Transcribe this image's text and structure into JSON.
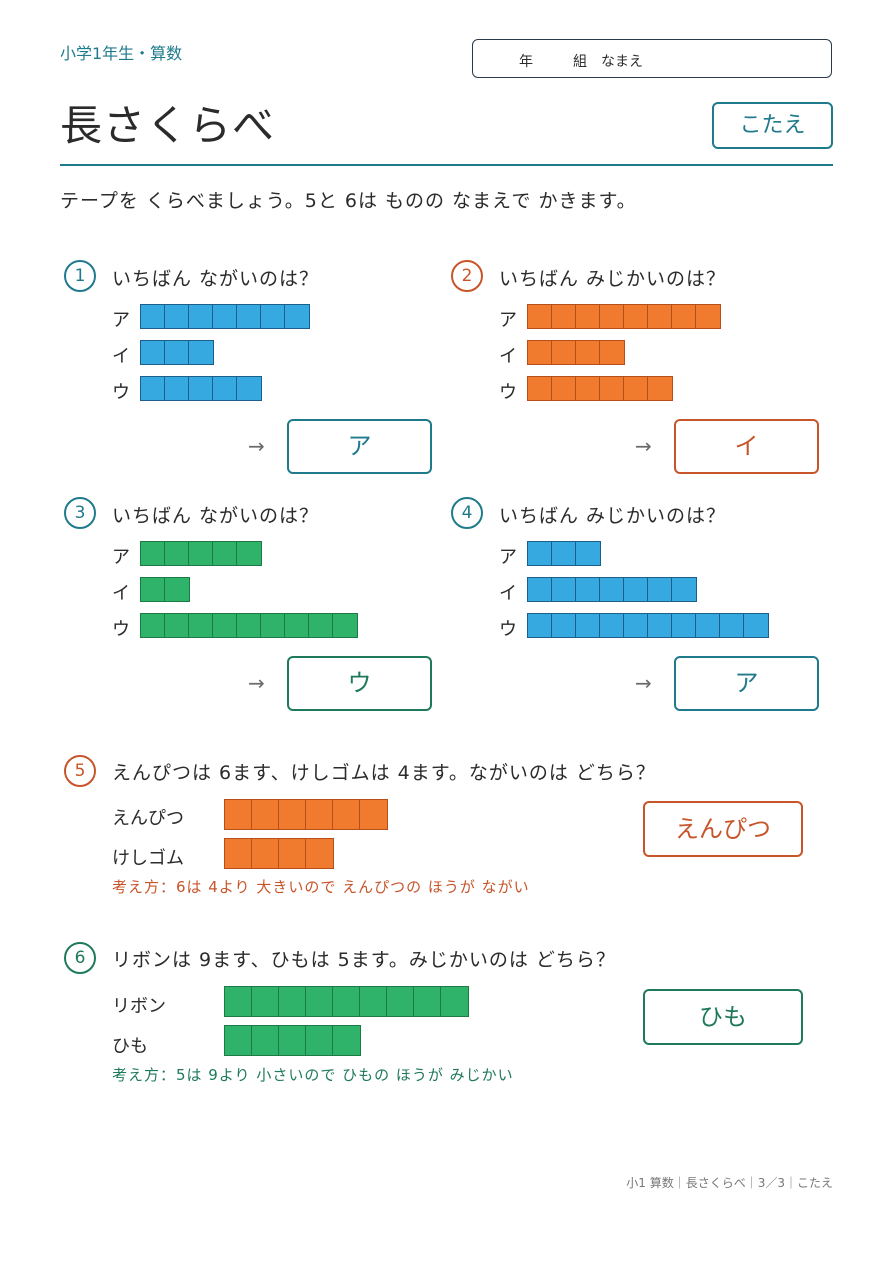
{
  "header": {
    "grade": "小学1年生・算数",
    "name_year": "年",
    "name_class": "組",
    "name_label": "なまえ",
    "title": "長さくらべ",
    "answer_badge": "こたえ"
  },
  "instruction": "テープを くらべましょう。5と 6は ものの なまえで かきます。",
  "colors": {
    "teal": "#1f7a8c",
    "blue_tape": "#36a9e1",
    "orange_tape": "#f07b2e",
    "green_tape": "#2fb36a",
    "orange_text": "#c8552a",
    "green_text": "#1f7a5a"
  },
  "arrow": "→",
  "questions": [
    {
      "num": "1",
      "text": "いちばん ながいのは？",
      "tapes": [
        {
          "label": "ア",
          "cells": 7
        },
        {
          "label": "イ",
          "cells": 3
        },
        {
          "label": "ウ",
          "cells": 5
        }
      ],
      "answer": "ア"
    },
    {
      "num": "2",
      "text": "いちばん みじかいのは？",
      "tapes": [
        {
          "label": "ア",
          "cells": 8
        },
        {
          "label": "イ",
          "cells": 4
        },
        {
          "label": "ウ",
          "cells": 6
        }
      ],
      "answer": "イ"
    },
    {
      "num": "3",
      "text": "いちばん ながいのは？",
      "tapes": [
        {
          "label": "ア",
          "cells": 5
        },
        {
          "label": "イ",
          "cells": 2
        },
        {
          "label": "ウ",
          "cells": 9
        }
      ],
      "answer": "ウ"
    },
    {
      "num": "4",
      "text": "いちばん みじかいのは？",
      "tapes": [
        {
          "label": "ア",
          "cells": 3
        },
        {
          "label": "イ",
          "cells": 7
        },
        {
          "label": "ウ",
          "cells": 10
        }
      ],
      "answer": "ア"
    },
    {
      "num": "5",
      "text": "えんぴつは 6ます、けしゴムは 4ます。ながいのは どちら？",
      "tapes": [
        {
          "label": "えんぴつ",
          "cells": 6
        },
        {
          "label": "けしゴム",
          "cells": 4
        }
      ],
      "hint": "考え方：6は 4より 大きいので えんぴつの ほうが ながい",
      "answer": "えんぴつ"
    },
    {
      "num": "6",
      "text": "リボンは 9ます、ひもは 5ます。みじかいのは どちら？",
      "tapes": [
        {
          "label": "リボン",
          "cells": 9
        },
        {
          "label": "ひも",
          "cells": 5
        }
      ],
      "hint": "考え方：5は 9より 小さいので ひもの ほうが みじかい",
      "answer": "ひも"
    }
  ],
  "footer": "小1 算数｜長さくらべ｜3／3｜こたえ"
}
